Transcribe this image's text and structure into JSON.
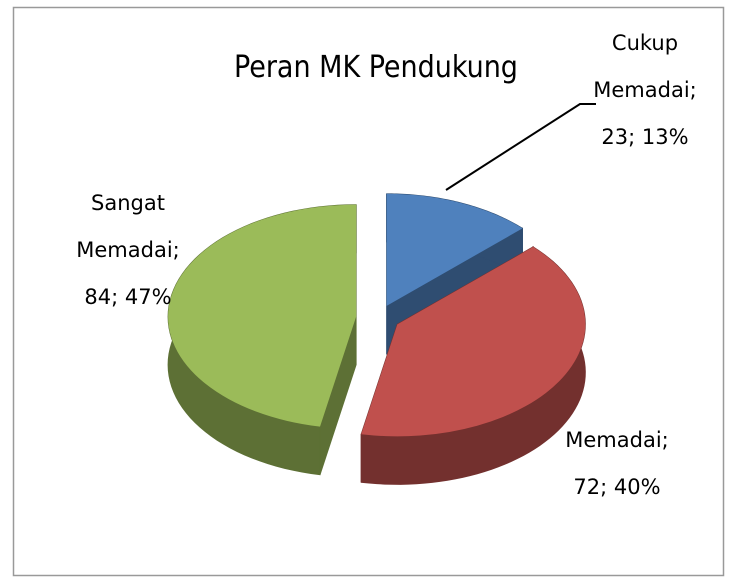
{
  "chart_data": {
    "type": "pie",
    "title": "Peran MK Pendukung",
    "values": [
      23,
      72,
      84
    ],
    "value_labels": [
      "Cukup Memadai; 23; 13%",
      "Memadai; 72; 40%",
      "Sangat Memadai; 84; 47%"
    ],
    "colors": [
      "#4f81bd",
      "#c0504d",
      "#9bbb59"
    ]
  }
}
